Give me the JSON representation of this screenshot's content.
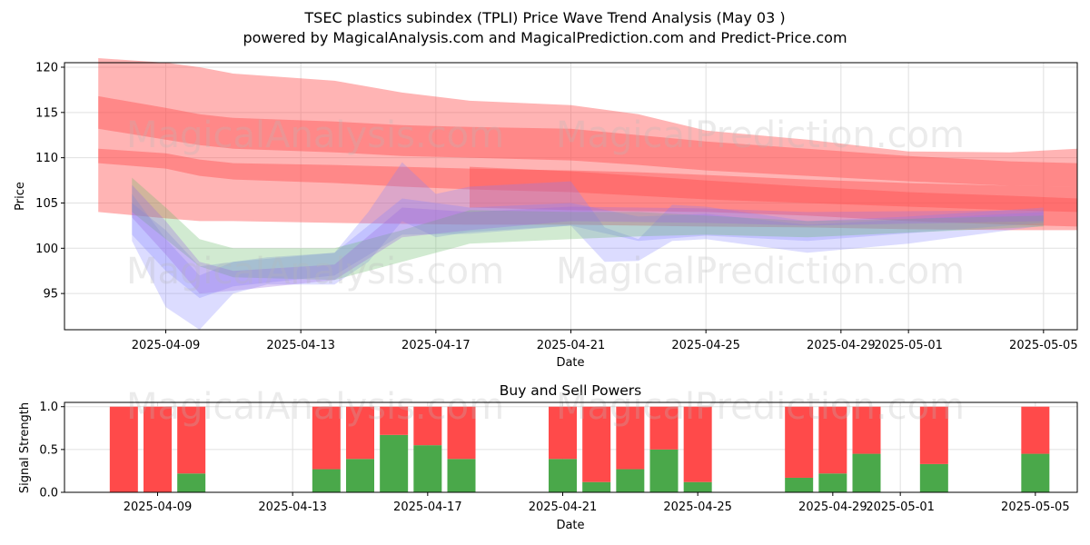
{
  "title_line1": "TSEC plastics subindex (TPLI) Price Wave Trend Analysis (May 03 )",
  "title_line2": "powered by MagicalAnalysis.com and MagicalPrediction.com and Predict-Price.com",
  "watermarks": [
    "MagicalAnalysis.com",
    "MagicalPrediction.com"
  ],
  "colors": {
    "buy": "#4aa84a",
    "sell": "#ff4a4a",
    "band_red": "#ff4d4d",
    "band_blue": "#8080ff",
    "band_green": "#66bb66",
    "band_purple": "#9966dd"
  },
  "chart_data": [
    {
      "type": "area",
      "ylabel": "Price",
      "xlabel": "Date",
      "x_ticks": [
        "2025-04-09",
        "2025-04-13",
        "2025-04-17",
        "2025-04-21",
        "2025-04-25",
        "2025-04-29",
        "2025-05-01",
        "2025-05-05"
      ],
      "y_ticks": [
        95,
        100,
        105,
        110,
        115,
        120
      ],
      "ylim": [
        91,
        120.5
      ],
      "xlim": [
        "2025-04-06",
        "2025-05-06"
      ],
      "grid": true,
      "series": [
        {
          "color": "red",
          "x": [
            "2025-04-07",
            "2025-04-09",
            "2025-04-10",
            "2025-04-11",
            "2025-04-14",
            "2025-04-16",
            "2025-04-18",
            "2025-04-21",
            "2025-04-23",
            "2025-04-25",
            "2025-04-28",
            "2025-05-01",
            "2025-05-04",
            "2025-05-06"
          ],
          "upper": [
            121,
            120.5,
            120,
            119.3,
            118.5,
            117.2,
            116.3,
            115.8,
            114.8,
            113,
            112,
            110.7,
            110.6,
            111
          ],
          "lower": [
            104,
            103.3,
            103,
            103,
            102.8,
            102.7,
            102.6,
            102.6,
            102.5,
            102.4,
            102.3,
            102.1,
            102.0,
            102
          ]
        },
        {
          "color": "red",
          "x": [
            "2025-04-07",
            "2025-04-09",
            "2025-04-10",
            "2025-04-11",
            "2025-04-14",
            "2025-04-16",
            "2025-04-18",
            "2025-04-21",
            "2025-04-23",
            "2025-04-25",
            "2025-04-28",
            "2025-05-01",
            "2025-05-04",
            "2025-05-06"
          ],
          "upper": [
            116.8,
            115.5,
            114.8,
            114.4,
            114.0,
            113.6,
            113.4,
            113.2,
            112.5,
            111.8,
            111.0,
            110.2,
            109.6,
            109.4
          ],
          "lower": [
            113.2,
            112.0,
            111.4,
            111.0,
            110.6,
            110.2,
            110.0,
            109.7,
            109.2,
            108.6,
            108.0,
            107.4,
            106.9,
            106.8
          ]
        },
        {
          "color": "red",
          "x": [
            "2025-04-07",
            "2025-04-09",
            "2025-04-10",
            "2025-04-11",
            "2025-04-14",
            "2025-04-16",
            "2025-04-18",
            "2025-04-21",
            "2025-04-23",
            "2025-04-25",
            "2025-04-28",
            "2025-05-01",
            "2025-05-04",
            "2025-05-06"
          ],
          "upper": [
            111.0,
            110.5,
            109.8,
            109.4,
            109.2,
            109.0,
            108.8,
            108.6,
            108.4,
            108.1,
            107.6,
            107.2,
            106.9,
            106.8
          ],
          "lower": [
            109.4,
            108.8,
            108.0,
            107.6,
            107.2,
            106.8,
            106.5,
            106.2,
            105.8,
            105.4,
            105.0,
            104.6,
            104.2,
            104.0
          ]
        },
        {
          "color": "red",
          "x": [
            "2025-04-18",
            "2025-04-21",
            "2025-04-25",
            "2025-04-28",
            "2025-05-01",
            "2025-05-04",
            "2025-05-06"
          ],
          "upper": [
            109.0,
            108.5,
            107.5,
            106.8,
            106.2,
            105.8,
            105.5
          ],
          "lower": [
            104.5,
            104.2,
            104.0,
            103.6,
            103.0,
            102.6,
            102.4
          ]
        },
        {
          "color": "blue",
          "x": [
            "2025-04-08",
            "2025-04-09",
            "2025-04-10",
            "2025-04-11",
            "2025-04-12",
            "2025-04-14",
            "2025-04-15",
            "2025-04-16",
            "2025-04-17",
            "2025-04-18",
            "2025-04-21",
            "2025-04-22",
            "2025-04-23",
            "2025-04-24",
            "2025-04-25",
            "2025-04-28",
            "2025-05-01",
            "2025-05-05"
          ],
          "upper": [
            106,
            101,
            97,
            98.5,
            99,
            99.5,
            104,
            109.5,
            106,
            106.8,
            107.4,
            102.3,
            101,
            104.8,
            104.6,
            103,
            103.5,
            104.5
          ],
          "lower": [
            100.8,
            93.5,
            91,
            95,
            96,
            96,
            98.5,
            103,
            101.2,
            101.8,
            102.5,
            98.5,
            98.6,
            100.8,
            101,
            99.5,
            100.5,
            102.5
          ]
        },
        {
          "color": "blue",
          "x": [
            "2025-04-08",
            "2025-04-09",
            "2025-04-10",
            "2025-04-11",
            "2025-04-14",
            "2025-04-16",
            "2025-04-18",
            "2025-04-21",
            "2025-04-23",
            "2025-04-25",
            "2025-04-28",
            "2025-05-05"
          ],
          "upper": [
            105,
            102,
            98,
            98.5,
            99.5,
            105.5,
            104.5,
            105,
            103.5,
            103.8,
            102.6,
            104
          ],
          "lower": [
            101.5,
            97.5,
            94.5,
            95.8,
            97,
            101.5,
            101.6,
            102.5,
            100.8,
            101.4,
            100.8,
            102.8
          ]
        },
        {
          "color": "green",
          "x": [
            "2025-04-08",
            "2025-04-09",
            "2025-04-10",
            "2025-04-11",
            "2025-04-14",
            "2025-04-16",
            "2025-04-18",
            "2025-04-21",
            "2025-04-23",
            "2025-04-25",
            "2025-04-28",
            "2025-05-05"
          ],
          "upper": [
            107.8,
            104.5,
            101,
            100,
            100,
            102,
            104.2,
            104,
            104,
            103.6,
            103,
            103.6
          ],
          "lower": [
            104,
            101,
            98,
            96.8,
            96.5,
            98.5,
            100.5,
            101,
            101.3,
            101.5,
            101.2,
            102.4
          ]
        },
        {
          "color": "purple",
          "x": [
            "2025-04-08",
            "2025-04-09",
            "2025-04-10",
            "2025-04-11",
            "2025-04-14",
            "2025-04-16",
            "2025-04-18",
            "2025-04-21",
            "2025-04-25",
            "2025-04-28",
            "2025-05-05"
          ],
          "upper": [
            107,
            103,
            98.5,
            97.5,
            98.2,
            104.5,
            104,
            104.6,
            104.4,
            104,
            104.2
          ],
          "lower": [
            103.4,
            99.3,
            95,
            95.3,
            96.5,
            101.2,
            102,
            103,
            102.8,
            102.5,
            103
          ]
        }
      ]
    },
    {
      "type": "bar",
      "title": "Buy and Sell Powers",
      "ylabel": "Signal Strength",
      "xlabel": "Date",
      "x_ticks": [
        "2025-04-09",
        "2025-04-13",
        "2025-04-17",
        "2025-04-21",
        "2025-04-25",
        "2025-04-29",
        "2025-05-01",
        "2025-05-05"
      ],
      "y_ticks": [
        "0.0",
        "0.5",
        "1.0"
      ],
      "ylim": [
        0,
        1.05
      ],
      "categories": [
        "2025-04-08",
        "2025-04-09",
        "2025-04-10",
        "2025-04-14",
        "2025-04-15",
        "2025-04-16",
        "2025-04-17",
        "2025-04-18",
        "2025-04-21",
        "2025-04-22",
        "2025-04-23",
        "2025-04-24",
        "2025-04-25",
        "2025-04-28",
        "2025-04-29",
        "2025-04-30",
        "2025-05-02",
        "2025-05-05"
      ],
      "series": [
        {
          "name": "buy",
          "values": [
            0,
            0,
            0.22,
            0.27,
            0.39,
            0.67,
            0.55,
            0.39,
            0.39,
            0.12,
            0.27,
            0.5,
            0.12,
            0.17,
            0.22,
            0.45,
            0.33,
            0.45
          ]
        },
        {
          "name": "sell",
          "values": [
            1,
            1,
            0.78,
            0.73,
            0.61,
            0.33,
            0.45,
            0.61,
            0.61,
            0.88,
            0.73,
            0.5,
            0.88,
            0.83,
            0.78,
            0.55,
            0.67,
            0.55
          ]
        }
      ]
    }
  ]
}
